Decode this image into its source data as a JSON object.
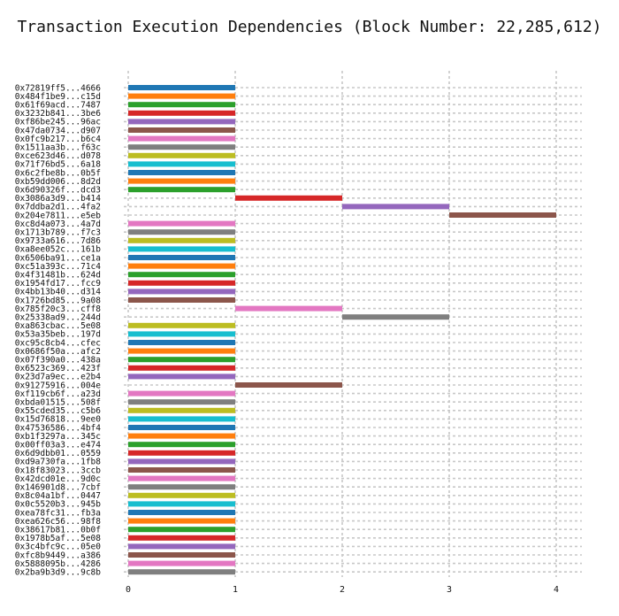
{
  "chart_data": {
    "type": "bar",
    "orientation": "horizontal-gantt",
    "title": "Transaction Execution Dependencies (Block Number: 22,285,612)",
    "xlabel": "",
    "ylabel": "",
    "xlim": [
      0,
      4
    ],
    "xticks": [
      "0",
      "1",
      "2",
      "3",
      "4"
    ],
    "grid": true,
    "legend": "none",
    "palette": [
      "#1f77b4",
      "#ff7f0e",
      "#2ca02c",
      "#d62728",
      "#9467bd",
      "#8c564b",
      "#e377c2",
      "#7f7f7f",
      "#bcbd22",
      "#17becf"
    ],
    "transactions": [
      {
        "label": "0x72819ff5...4666",
        "start": 0,
        "end": 1
      },
      {
        "label": "0x484f1be9...c15d",
        "start": 0,
        "end": 1
      },
      {
        "label": "0x61f69acd...7487",
        "start": 0,
        "end": 1
      },
      {
        "label": "0x3232b841...3be6",
        "start": 0,
        "end": 1
      },
      {
        "label": "0xf86be245...96ac",
        "start": 0,
        "end": 1
      },
      {
        "label": "0x47da0734...d907",
        "start": 0,
        "end": 1
      },
      {
        "label": "0x0fc9b217...b6c4",
        "start": 0,
        "end": 1
      },
      {
        "label": "0x1511aa3b...f63c",
        "start": 0,
        "end": 1
      },
      {
        "label": "0xce623d46...d078",
        "start": 0,
        "end": 1
      },
      {
        "label": "0x71f76bd5...6a18",
        "start": 0,
        "end": 1
      },
      {
        "label": "0x6c2fbe8b...0b5f",
        "start": 0,
        "end": 1
      },
      {
        "label": "0xb59dd006...8d2d",
        "start": 0,
        "end": 1
      },
      {
        "label": "0x6d90326f...dcd3",
        "start": 0,
        "end": 1
      },
      {
        "label": "0x3086a3d9...b414",
        "start": 1,
        "end": 2
      },
      {
        "label": "0x7ddba2d1...4fa2",
        "start": 2,
        "end": 3
      },
      {
        "label": "0x204e7811...e5eb",
        "start": 3,
        "end": 4
      },
      {
        "label": "0xc8d4a073...4a7d",
        "start": 0,
        "end": 1
      },
      {
        "label": "0x1713b789...f7c3",
        "start": 0,
        "end": 1
      },
      {
        "label": "0x9733a616...7d86",
        "start": 0,
        "end": 1
      },
      {
        "label": "0xa8ee052c...161b",
        "start": 0,
        "end": 1
      },
      {
        "label": "0x6506ba91...ce1a",
        "start": 0,
        "end": 1
      },
      {
        "label": "0xc51a393c...71c4",
        "start": 0,
        "end": 1
      },
      {
        "label": "0x4f31481b...624d",
        "start": 0,
        "end": 1
      },
      {
        "label": "0x1954fd17...fcc9",
        "start": 0,
        "end": 1
      },
      {
        "label": "0x4bb13b40...d314",
        "start": 0,
        "end": 1
      },
      {
        "label": "0x1726bd85...9a08",
        "start": 0,
        "end": 1
      },
      {
        "label": "0x785f20c3...cff8",
        "start": 1,
        "end": 2
      },
      {
        "label": "0x25338ad9...244d",
        "start": 2,
        "end": 3
      },
      {
        "label": "0xa863cbac...5e08",
        "start": 0,
        "end": 1
      },
      {
        "label": "0x53a35beb...197d",
        "start": 0,
        "end": 1
      },
      {
        "label": "0xc95c8cb4...cfec",
        "start": 0,
        "end": 1
      },
      {
        "label": "0x0686f50a...afc2",
        "start": 0,
        "end": 1
      },
      {
        "label": "0x07f390a0...438a",
        "start": 0,
        "end": 1
      },
      {
        "label": "0x6523c369...423f",
        "start": 0,
        "end": 1
      },
      {
        "label": "0x23d7a9ec...e2b4",
        "start": 0,
        "end": 1
      },
      {
        "label": "0x91275916...004e",
        "start": 1,
        "end": 2
      },
      {
        "label": "0xf119cb6f...a23d",
        "start": 0,
        "end": 1
      },
      {
        "label": "0xbda01515...508f",
        "start": 0,
        "end": 1
      },
      {
        "label": "0x55cded35...c5b6",
        "start": 0,
        "end": 1
      },
      {
        "label": "0x15d76818...9ee0",
        "start": 0,
        "end": 1
      },
      {
        "label": "0x47536586...4bf4",
        "start": 0,
        "end": 1
      },
      {
        "label": "0xb1f3297a...345c",
        "start": 0,
        "end": 1
      },
      {
        "label": "0x00ff03a3...e474",
        "start": 0,
        "end": 1
      },
      {
        "label": "0x6d9dbb01...0559",
        "start": 0,
        "end": 1
      },
      {
        "label": "0xd9a730fa...1fb8",
        "start": 0,
        "end": 1
      },
      {
        "label": "0x18f83023...3ccb",
        "start": 0,
        "end": 1
      },
      {
        "label": "0x42dcd01e...9d0c",
        "start": 0,
        "end": 1
      },
      {
        "label": "0x146901d8...7cbf",
        "start": 0,
        "end": 1
      },
      {
        "label": "0x8c04a1bf...0447",
        "start": 0,
        "end": 1
      },
      {
        "label": "0x0c5520b3...945b",
        "start": 0,
        "end": 1
      },
      {
        "label": "0xea78fc31...fb3a",
        "start": 0,
        "end": 1
      },
      {
        "label": "0xea626c56...98f8",
        "start": 0,
        "end": 1
      },
      {
        "label": "0x38617b81...0b0f",
        "start": 0,
        "end": 1
      },
      {
        "label": "0x1978b5af...5e08",
        "start": 0,
        "end": 1
      },
      {
        "label": "0x3c4bfc9c...05e0",
        "start": 0,
        "end": 1
      },
      {
        "label": "0xfc8b9449...a386",
        "start": 0,
        "end": 1
      },
      {
        "label": "0x5888095b...4286",
        "start": 0,
        "end": 1
      },
      {
        "label": "0x2ba9b3d9...9c8b",
        "start": 0,
        "end": 1
      }
    ]
  }
}
